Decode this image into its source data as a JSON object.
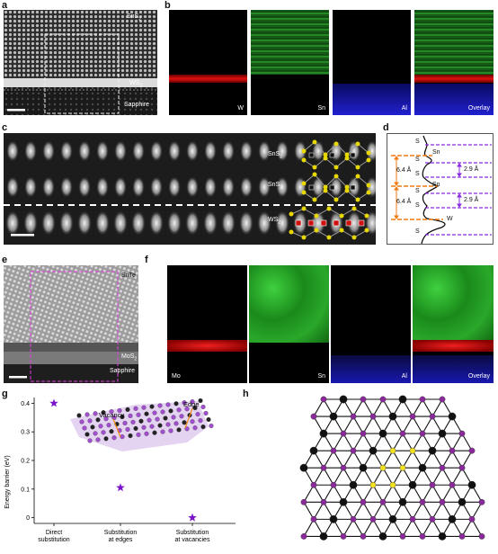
{
  "panels": {
    "a": {
      "letter": "a",
      "labels": {
        "top": "SnS",
        "top_sub": "2",
        "mid": "WS",
        "mid_sub": "2",
        "bottom": "Sapphire"
      }
    },
    "b": {
      "letter": "b",
      "maps": [
        {
          "label": "W",
          "color": "#e01010"
        },
        {
          "label": "Sn",
          "color": "#20c020"
        },
        {
          "label": "Al",
          "color": "#2020d0"
        },
        {
          "label": "Overlay",
          "color": "overlay"
        }
      ]
    },
    "c": {
      "letter": "c",
      "layers": [
        {
          "text": "SnS",
          "sub": "2"
        },
        {
          "text": "SnS",
          "sub": "2"
        },
        {
          "text": "WS",
          "sub": "2"
        }
      ]
    },
    "d": {
      "letter": "d",
      "labels": {
        "s1": "S",
        "sn1": "Sn",
        "s2": "S",
        "s3": "S",
        "sn2": "Sn",
        "s4": "S",
        "s5": "S",
        "w": "W",
        "s6": "S",
        "d1": "6.4 Å",
        "d2": "6.4 Å",
        "g1": "2.9 Å",
        "g2": "2.9 Å"
      }
    },
    "e": {
      "letter": "e",
      "labels": {
        "top": "SnTe",
        "mid": "MoS",
        "mid_sub": "2",
        "bottom": "Sapphire"
      }
    },
    "f": {
      "letter": "f",
      "maps": [
        {
          "label": "Mo",
          "color": "#e01010"
        },
        {
          "label": "Sn",
          "color": "#20c020"
        },
        {
          "label": "Al",
          "color": "#2020d0"
        },
        {
          "label": "Overlay",
          "color": "overlay"
        }
      ]
    },
    "g": {
      "letter": "g",
      "annotations": {
        "vacancy": "Vacancy",
        "edge": "Edge"
      }
    },
    "h": {
      "letter": "h"
    }
  },
  "chart_data": {
    "type": "scatter",
    "categories": [
      "Direct\nsubstitution",
      "Substitution\nat edges",
      "Substitution\nat vacancies"
    ],
    "category_lines": [
      [
        "Direct",
        "substitution"
      ],
      [
        "Substitution",
        "at edges"
      ],
      [
        "Substitution",
        "at vacancies"
      ]
    ],
    "values": [
      0.4,
      0.105,
      0.0
    ],
    "ylabel": "Energy barrier (eV)",
    "ylim": [
      -0.02,
      0.42
    ],
    "yticks": [
      "0",
      "0.1",
      "0.2",
      "0.3",
      "0.4"
    ],
    "marker_color": "#7b14c8"
  }
}
